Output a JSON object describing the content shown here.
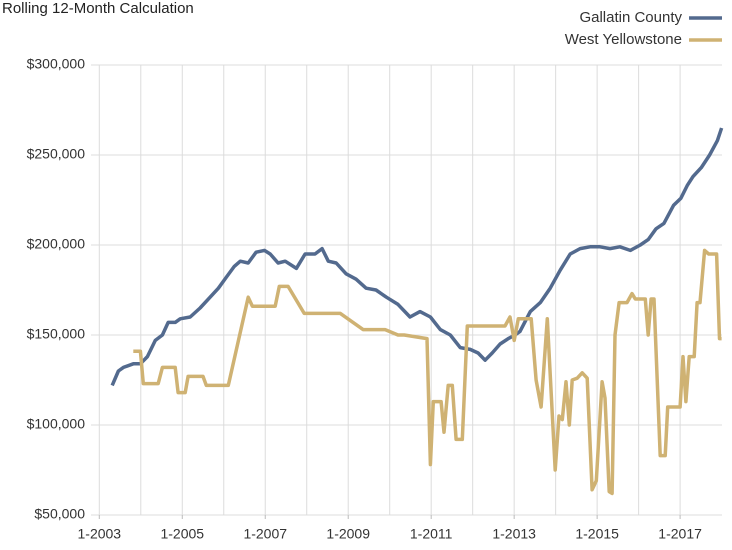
{
  "chart_data": {
    "type": "line",
    "title": "Rolling 12-Month Calculation",
    "xlim": [
      2002.8,
      2018.01
    ],
    "xticks": [
      {
        "value": 2003,
        "label": "1-2003"
      },
      {
        "value": 2005,
        "label": "1-2005"
      },
      {
        "value": 2007,
        "label": "1-2007"
      },
      {
        "value": 2009,
        "label": "1-2009"
      },
      {
        "value": 2011,
        "label": "1-2011"
      },
      {
        "value": 2013,
        "label": "1-2013"
      },
      {
        "value": 2015,
        "label": "1-2015"
      },
      {
        "value": 2017,
        "label": "1-2017"
      }
    ],
    "xgrid": [
      2003,
      2004,
      2005,
      2006,
      2007,
      2008,
      2009,
      2010,
      2011,
      2012,
      2013,
      2014,
      2015,
      2016,
      2017
    ],
    "ylim": [
      50000,
      300000
    ],
    "yticks": [
      {
        "value": 50000,
        "label": "$50,000"
      },
      {
        "value": 100000,
        "label": "$100,000"
      },
      {
        "value": 150000,
        "label": "$150,000"
      },
      {
        "value": 200000,
        "label": "$200,000"
      },
      {
        "value": 250000,
        "label": "$250,000"
      },
      {
        "value": 300000,
        "label": "$300,000"
      }
    ],
    "grid": true,
    "legend": "top-right",
    "series": [
      {
        "name": "Gallatin County",
        "color": "#536a8e",
        "x": [
          2003.31,
          2003.46,
          2003.58,
          2003.82,
          2003.99,
          2004.16,
          2004.35,
          2004.52,
          2004.66,
          2004.83,
          2004.95,
          2005.19,
          2005.43,
          2005.67,
          2005.87,
          2006.06,
          2006.25,
          2006.4,
          2006.59,
          2006.78,
          2006.98,
          2007.12,
          2007.31,
          2007.48,
          2007.75,
          2007.96,
          2008.2,
          2008.37,
          2008.52,
          2008.71,
          2008.95,
          2009.19,
          2009.43,
          2009.67,
          2009.92,
          2010.2,
          2010.49,
          2010.73,
          2010.98,
          2011.22,
          2011.46,
          2011.7,
          2011.94,
          2012.13,
          2012.3,
          2012.47,
          2012.66,
          2012.86,
          2013.02,
          2013.14,
          2013.39,
          2013.63,
          2013.87,
          2014.11,
          2014.35,
          2014.59,
          2014.83,
          2015.07,
          2015.31,
          2015.55,
          2015.8,
          2016.04,
          2016.23,
          2016.42,
          2016.61,
          2016.84,
          2017.02,
          2017.17,
          2017.31,
          2017.51,
          2017.71,
          2017.9,
          2018.0
        ],
        "values": [
          122000,
          130000,
          132000,
          134000,
          134000,
          138000,
          147000,
          150000,
          157000,
          157000,
          159000,
          160000,
          165000,
          171000,
          176000,
          182000,
          188000,
          191000,
          190000,
          196000,
          197000,
          195000,
          190000,
          191000,
          187000,
          195000,
          195000,
          198000,
          191000,
          190000,
          184000,
          181000,
          176000,
          175000,
          171000,
          167000,
          160000,
          163000,
          160000,
          153000,
          150000,
          143000,
          142000,
          140000,
          136000,
          140000,
          145000,
          148000,
          150000,
          152000,
          163000,
          168000,
          176000,
          186000,
          195000,
          198000,
          199000,
          199000,
          198000,
          199000,
          197000,
          200000,
          203000,
          209000,
          212000,
          222000,
          226000,
          233000,
          238000,
          243000,
          250000,
          258000,
          265000
        ]
      },
      {
        "name": "West Yellowstone",
        "color": "#cfb273",
        "x": [
          2003.82,
          2003.99,
          2004.06,
          2004.42,
          2004.52,
          2004.83,
          2004.9,
          2005.07,
          2005.14,
          2005.5,
          2005.58,
          2006.11,
          2006.59,
          2006.69,
          2007.24,
          2007.34,
          2007.55,
          2007.94,
          2008.81,
          2009.36,
          2009.89,
          2010.2,
          2010.35,
          2010.9,
          2010.98,
          2011.05,
          2011.24,
          2011.31,
          2011.41,
          2011.51,
          2011.6,
          2011.75,
          2011.87,
          2012.78,
          2012.9,
          2013.0,
          2013.1,
          2013.41,
          2013.53,
          2013.65,
          2013.8,
          2013.99,
          2014.08,
          2014.16,
          2014.25,
          2014.33,
          2014.4,
          2014.52,
          2014.64,
          2014.76,
          2014.88,
          2014.98,
          2015.12,
          2015.19,
          2015.29,
          2015.36,
          2015.43,
          2015.53,
          2015.72,
          2015.84,
          2015.92,
          2016.16,
          2016.23,
          2016.3,
          2016.37,
          2016.52,
          2016.64,
          2016.7,
          2017.0,
          2017.07,
          2017.14,
          2017.22,
          2017.34,
          2017.41,
          2017.48,
          2017.59,
          2017.69,
          2017.88,
          2017.95,
          2018.0
        ],
        "values": [
          141000,
          141000,
          123000,
          123000,
          132000,
          132000,
          118000,
          118000,
          127000,
          127000,
          122000,
          122000,
          171000,
          166000,
          166000,
          177000,
          177000,
          162000,
          162000,
          153000,
          153000,
          150000,
          150000,
          148000,
          78000,
          113000,
          113000,
          96000,
          122000,
          122000,
          92000,
          92000,
          155000,
          155000,
          160000,
          147000,
          159000,
          159000,
          125000,
          110000,
          159000,
          75000,
          105000,
          103000,
          124000,
          100000,
          125000,
          126000,
          129000,
          126000,
          64000,
          69000,
          124000,
          115000,
          63000,
          62000,
          150000,
          168000,
          168000,
          173000,
          170000,
          170000,
          150000,
          170000,
          170000,
          83000,
          83000,
          110000,
          110000,
          138000,
          113000,
          138000,
          138000,
          168000,
          168000,
          197000,
          195000,
          195000,
          148000,
          148000
        ]
      }
    ]
  }
}
